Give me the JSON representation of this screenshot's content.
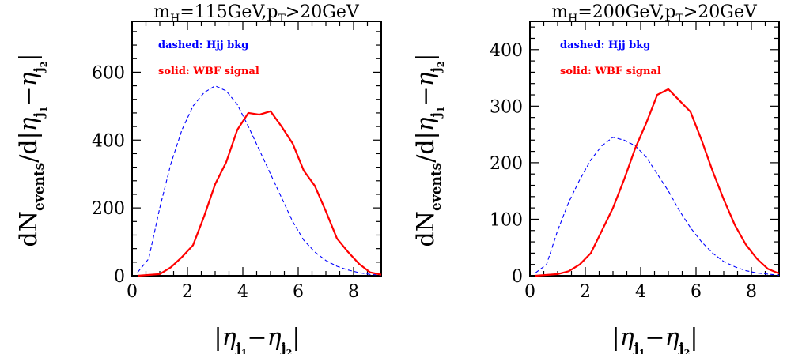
{
  "chart_data": [
    {
      "type": "line",
      "title": "m_H=115GeV,p_T>20GeV",
      "title_parts": {
        "m": "m",
        "m_sub": "H",
        "mid": "=115GeV,p",
        "p_sub": "T",
        "end": ">20GeV"
      },
      "xlim": [
        0,
        9
      ],
      "ylim": [
        0,
        750
      ],
      "x_ticks": [
        0,
        2,
        4,
        6,
        8
      ],
      "y_ticks": [
        0,
        200,
        400,
        600
      ],
      "legend": {
        "dashed": "dashed:  Hjj  bkg",
        "solid": "solid:  WBF  signal"
      },
      "series": [
        {
          "name": "Hjj bkg",
          "style": "dashed",
          "color": "#0000ff",
          "x": [
            0.2,
            0.6,
            1.0,
            1.4,
            1.8,
            2.2,
            2.6,
            3.0,
            3.4,
            3.8,
            4.2,
            4.6,
            5.0,
            5.4,
            5.8,
            6.2,
            6.6,
            7.0,
            7.4,
            7.8,
            8.2,
            8.6,
            9.0
          ],
          "y": [
            10,
            50,
            200,
            330,
            430,
            500,
            540,
            560,
            545,
            505,
            440,
            370,
            300,
            230,
            160,
            105,
            70,
            45,
            28,
            17,
            9,
            4,
            2
          ]
        },
        {
          "name": "WBF signal",
          "style": "solid",
          "color": "#ff0000",
          "x": [
            0.2,
            1.0,
            1.4,
            1.8,
            2.2,
            2.6,
            3.0,
            3.4,
            3.8,
            4.2,
            4.6,
            5.0,
            5.4,
            5.8,
            6.2,
            6.6,
            7.0,
            7.4,
            7.8,
            8.2,
            8.6,
            9.0
          ],
          "y": [
            0,
            5,
            25,
            55,
            90,
            175,
            270,
            335,
            430,
            480,
            475,
            485,
            440,
            390,
            310,
            265,
            190,
            110,
            70,
            35,
            10,
            3
          ]
        }
      ]
    },
    {
      "type": "line",
      "title": "m_H=200GeV,p_T>20GeV",
      "title_parts": {
        "m": "m",
        "m_sub": "H",
        "mid": "=200GeV,p",
        "p_sub": "T",
        "end": ">20GeV"
      },
      "xlim": [
        0,
        9
      ],
      "ylim": [
        0,
        450
      ],
      "x_ticks": [
        0,
        2,
        4,
        6,
        8
      ],
      "y_ticks": [
        0,
        100,
        200,
        300,
        400
      ],
      "legend": {
        "dashed": "dashed:  Hjj  bkg",
        "solid": "solid:  WBF  signal"
      },
      "series": [
        {
          "name": "Hjj bkg",
          "style": "dashed",
          "color": "#0000ff",
          "x": [
            0.2,
            0.6,
            1.0,
            1.4,
            1.8,
            2.2,
            2.6,
            3.0,
            3.4,
            3.8,
            4.2,
            4.6,
            5.0,
            5.4,
            5.8,
            6.2,
            6.6,
            7.0,
            7.4,
            7.8,
            8.2,
            8.6,
            9.0
          ],
          "y": [
            5,
            20,
            80,
            130,
            170,
            205,
            230,
            245,
            240,
            230,
            210,
            180,
            150,
            115,
            85,
            60,
            40,
            25,
            16,
            9,
            5,
            3,
            1
          ]
        },
        {
          "name": "WBF signal",
          "style": "solid",
          "color": "#ff0000",
          "x": [
            0.2,
            1.0,
            1.4,
            1.8,
            2.2,
            2.6,
            3.0,
            3.4,
            3.8,
            4.2,
            4.6,
            5.0,
            5.4,
            5.8,
            6.2,
            6.6,
            7.0,
            7.4,
            7.8,
            8.2,
            8.6,
            9.0
          ],
          "y": [
            0,
            3,
            8,
            20,
            40,
            80,
            120,
            170,
            225,
            270,
            320,
            330,
            310,
            290,
            240,
            185,
            135,
            90,
            55,
            30,
            12,
            4
          ]
        }
      ]
    }
  ],
  "axis_labels": {
    "ylabel": "dN_events/d|η_j1 − η_j2|",
    "xlabel": "|η_j1 − η_j2|",
    "y_parts": {
      "d1": "dN",
      "events": "events",
      "d2": "/d|",
      "eta": "η",
      "j": "j",
      "one": "1",
      "two": "2",
      "minus": "−",
      "bar": "|"
    },
    "x_parts": {
      "bar1": "|",
      "eta": "η",
      "j": "j",
      "one": "1",
      "two": "2",
      "minus": "−",
      "bar2": "|"
    }
  }
}
